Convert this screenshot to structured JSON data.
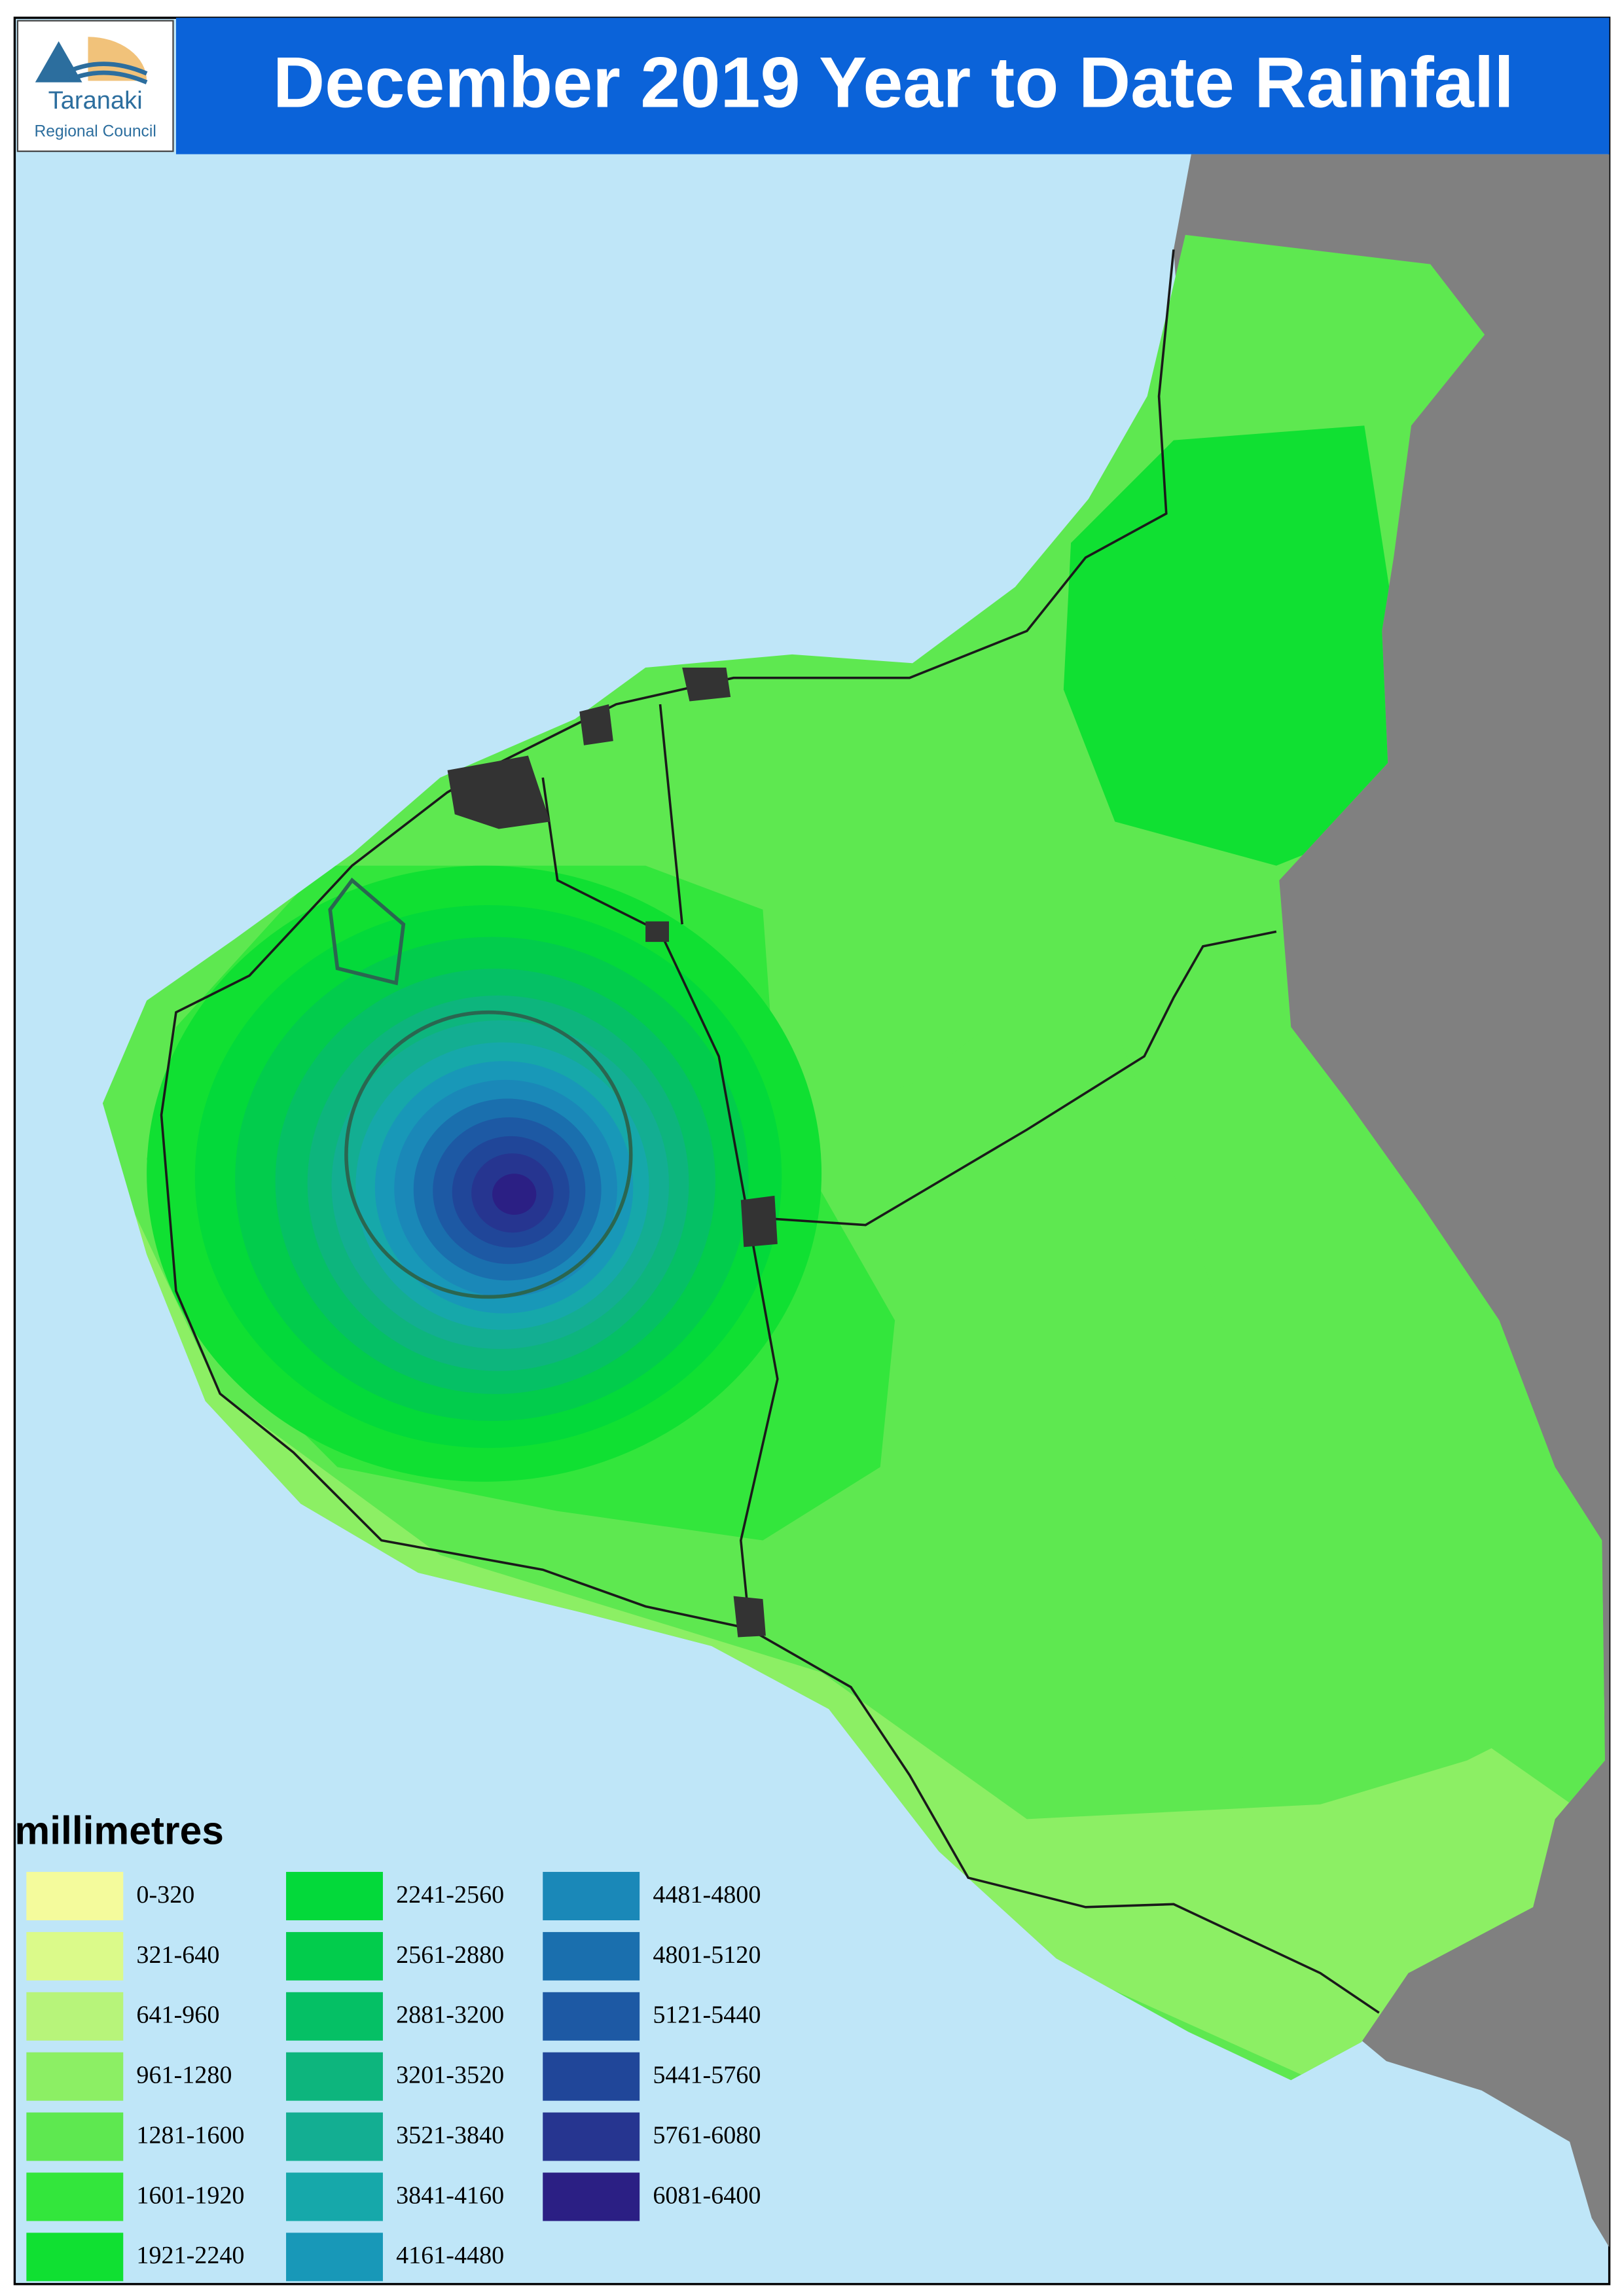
{
  "header": {
    "title": "December 2019 Year to Date Rainfall",
    "logo": {
      "name": "Taranaki",
      "subtitle": "Regional Council"
    }
  },
  "legend": {
    "title": "millimetres",
    "items": [
      {
        "label": "0-320",
        "color": "#f4fb9c"
      },
      {
        "label": "321-640",
        "color": "#dbfa8a"
      },
      {
        "label": "641-960",
        "color": "#b7f47a"
      },
      {
        "label": "961-1280",
        "color": "#8cef64"
      },
      {
        "label": "1281-1600",
        "color": "#5ee850"
      },
      {
        "label": "1601-1920",
        "color": "#33e63c"
      },
      {
        "label": "1921-2240",
        "color": "#10e032"
      },
      {
        "label": "2241-2560",
        "color": "#03d93a"
      },
      {
        "label": "2561-2880",
        "color": "#02cc4c"
      },
      {
        "label": "2881-3200",
        "color": "#05c065"
      },
      {
        "label": "3201-3520",
        "color": "#0db57d"
      },
      {
        "label": "3521-3840",
        "color": "#13ae92"
      },
      {
        "label": "3841-4160",
        "color": "#16a8aa"
      },
      {
        "label": "4161-4480",
        "color": "#1898b8"
      },
      {
        "label": "4481-4800",
        "color": "#1a88b8"
      },
      {
        "label": "4801-5120",
        "color": "#1a6fae"
      },
      {
        "label": "5121-5440",
        "color": "#1d59a4"
      },
      {
        "label": "5441-5760",
        "color": "#204699"
      },
      {
        "label": "5761-6080",
        "color": "#263590"
      },
      {
        "label": "6081-6400",
        "color": "#2b1f84"
      }
    ]
  }
}
